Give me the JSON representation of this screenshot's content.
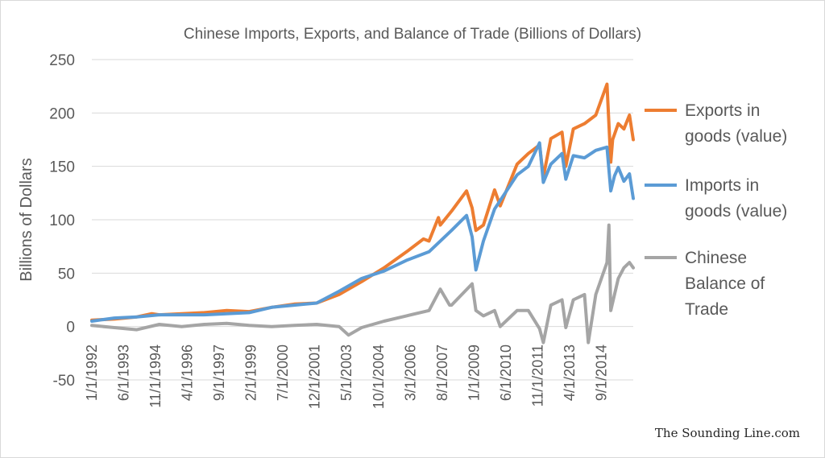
{
  "chart_data": {
    "type": "line",
    "title": "Chinese Imports, Exports, and Balance of Trade (Billions of Dollars)",
    "ylabel": "Billions of Dollars",
    "xlabel": "",
    "ylim": [
      -50,
      250
    ],
    "yticks": [
      -50,
      0,
      50,
      100,
      150,
      200,
      250
    ],
    "grid": true,
    "legend": "right",
    "xrange": [
      "1/1/1992",
      "2/1/2016"
    ],
    "xtick_labels": [
      "1/1/1992",
      "6/1/1993",
      "11/1/1994",
      "4/1/1996",
      "9/1/1997",
      "2/1/1999",
      "7/1/2000",
      "12/1/2001",
      "5/1/2003",
      "10/1/2004",
      "3/1/2006",
      "8/1/2007",
      "1/1/2009",
      "6/1/2010",
      "11/1/2011",
      "4/1/2013",
      "9/1/2014"
    ],
    "series": [
      {
        "name": "Exports in goods (value)",
        "color": "#ed7d31",
        "points": [
          [
            "1/1/1992",
            6
          ],
          [
            "1/1/1993",
            7
          ],
          [
            "1/1/1994",
            9
          ],
          [
            "9/1/1994",
            12
          ],
          [
            "1/1/1995",
            11
          ],
          [
            "1/1/1996",
            12
          ],
          [
            "1/1/1997",
            13
          ],
          [
            "1/1/1998",
            15
          ],
          [
            "1/1/1999",
            14
          ],
          [
            "1/1/2000",
            18
          ],
          [
            "1/1/2001",
            21
          ],
          [
            "1/1/2002",
            22
          ],
          [
            "1/1/2003",
            30
          ],
          [
            "1/1/2004",
            42
          ],
          [
            "1/1/2005",
            55
          ],
          [
            "1/1/2006",
            70
          ],
          [
            "10/1/2006",
            82
          ],
          [
            "1/1/2007",
            80
          ],
          [
            "6/1/2007",
            102
          ],
          [
            "7/1/2007",
            95
          ],
          [
            "1/1/2008",
            108
          ],
          [
            "9/1/2008",
            127
          ],
          [
            "12/1/2008",
            111
          ],
          [
            "2/1/2009",
            90
          ],
          [
            "6/1/2009",
            95
          ],
          [
            "12/1/2009",
            128
          ],
          [
            "3/1/2010",
            113
          ],
          [
            "12/1/2010",
            152
          ],
          [
            "6/1/2011",
            162
          ],
          [
            "12/1/2011",
            170
          ],
          [
            "2/1/2012",
            140
          ],
          [
            "6/1/2012",
            176
          ],
          [
            "12/1/2012",
            182
          ],
          [
            "2/1/2013",
            150
          ],
          [
            "6/1/2013",
            185
          ],
          [
            "12/1/2013",
            190
          ],
          [
            "6/1/2014",
            198
          ],
          [
            "12/1/2014",
            227
          ],
          [
            "2/1/2015",
            154
          ],
          [
            "3/1/2015",
            175
          ],
          [
            "6/1/2015",
            190
          ],
          [
            "9/1/2015",
            185
          ],
          [
            "12/1/2015",
            198
          ],
          [
            "2/1/2016",
            175
          ]
        ]
      },
      {
        "name": "Imports in goods (value)",
        "color": "#5b9bd5",
        "points": [
          [
            "1/1/1992",
            5
          ],
          [
            "1/1/1993",
            8
          ],
          [
            "1/1/1994",
            9
          ],
          [
            "1/1/1995",
            11
          ],
          [
            "1/1/1996",
            11
          ],
          [
            "1/1/1997",
            11
          ],
          [
            "1/1/1998",
            12
          ],
          [
            "1/1/1999",
            13
          ],
          [
            "1/1/2000",
            18
          ],
          [
            "1/1/2001",
            20
          ],
          [
            "1/1/2002",
            22
          ],
          [
            "1/1/2003",
            33
          ],
          [
            "1/1/2004",
            45
          ],
          [
            "1/1/2005",
            52
          ],
          [
            "1/1/2006",
            62
          ],
          [
            "1/1/2007",
            70
          ],
          [
            "1/1/2008",
            90
          ],
          [
            "9/1/2008",
            104
          ],
          [
            "12/1/2008",
            84
          ],
          [
            "2/1/2009",
            53
          ],
          [
            "6/1/2009",
            80
          ],
          [
            "12/1/2009",
            110
          ],
          [
            "12/1/2010",
            142
          ],
          [
            "6/1/2011",
            150
          ],
          [
            "12/1/2011",
            172
          ],
          [
            "2/1/2012",
            135
          ],
          [
            "6/1/2012",
            152
          ],
          [
            "12/1/2012",
            162
          ],
          [
            "2/1/2013",
            138
          ],
          [
            "6/1/2013",
            160
          ],
          [
            "12/1/2013",
            158
          ],
          [
            "6/1/2014",
            165
          ],
          [
            "12/1/2014",
            168
          ],
          [
            "2/1/2015",
            127
          ],
          [
            "4/1/2015",
            141
          ],
          [
            "6/1/2015",
            149
          ],
          [
            "9/1/2015",
            136
          ],
          [
            "12/1/2015",
            143
          ],
          [
            "2/1/2016",
            120
          ]
        ]
      },
      {
        "name": "Chinese Balance of Trade",
        "color": "#a5a5a5",
        "points": [
          [
            "1/1/1992",
            1
          ],
          [
            "1/1/1993",
            -1
          ],
          [
            "1/1/1994",
            -3
          ],
          [
            "1/1/1995",
            2
          ],
          [
            "1/1/1996",
            0
          ],
          [
            "1/1/1997",
            2
          ],
          [
            "1/1/1998",
            3
          ],
          [
            "1/1/1999",
            1
          ],
          [
            "1/1/2000",
            0
          ],
          [
            "1/1/2001",
            1
          ],
          [
            "1/1/2002",
            2
          ],
          [
            "1/1/2003",
            0
          ],
          [
            "6/1/2003",
            -8
          ],
          [
            "1/1/2004",
            -1
          ],
          [
            "1/1/2005",
            5
          ],
          [
            "1/1/2006",
            10
          ],
          [
            "1/1/2007",
            15
          ],
          [
            "7/1/2007",
            35
          ],
          [
            "12/1/2007",
            20
          ],
          [
            "1/1/2008",
            20
          ],
          [
            "12/1/2008",
            40
          ],
          [
            "2/1/2009",
            15
          ],
          [
            "6/1/2009",
            10
          ],
          [
            "12/1/2009",
            15
          ],
          [
            "3/1/2010",
            0
          ],
          [
            "12/1/2010",
            15
          ],
          [
            "6/1/2011",
            15
          ],
          [
            "12/1/2011",
            -2
          ],
          [
            "2/1/2012",
            -15
          ],
          [
            "6/1/2012",
            20
          ],
          [
            "12/1/2012",
            25
          ],
          [
            "2/1/2013",
            -1
          ],
          [
            "6/1/2013",
            25
          ],
          [
            "12/1/2013",
            30
          ],
          [
            "2/1/2014",
            -15
          ],
          [
            "6/1/2014",
            30
          ],
          [
            "12/1/2014",
            60
          ],
          [
            "1/1/2015",
            95
          ],
          [
            "2/1/2015",
            15
          ],
          [
            "6/1/2015",
            45
          ],
          [
            "9/1/2015",
            55
          ],
          [
            "12/1/2015",
            60
          ],
          [
            "2/1/2016",
            55
          ]
        ]
      }
    ]
  },
  "credit": "The Sounding Line.com"
}
